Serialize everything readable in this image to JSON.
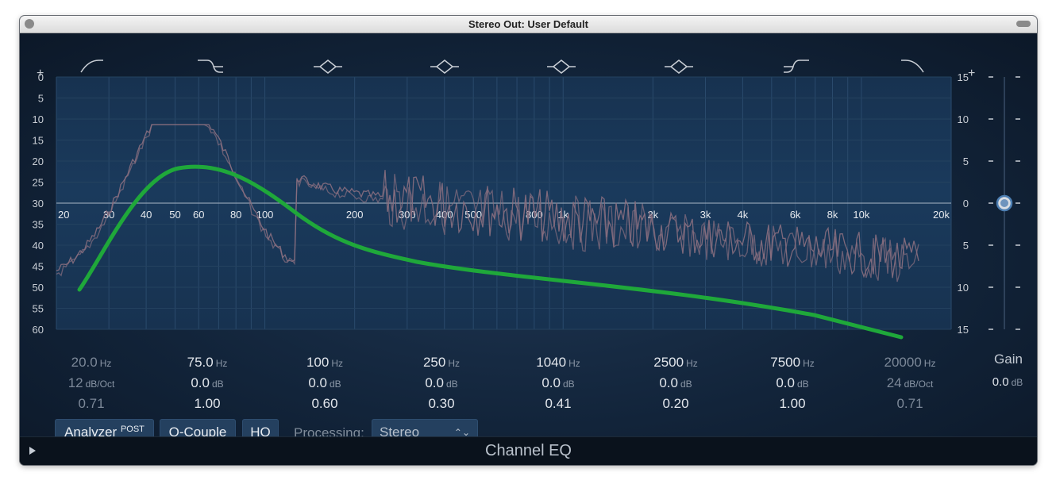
{
  "window": {
    "title": "Stereo Out: User Default"
  },
  "left_axis": {
    "plus": "+",
    "minus": "-",
    "ticks": [
      "0",
      "5",
      "10",
      "15",
      "20",
      "25",
      "30",
      "35",
      "40",
      "45",
      "50",
      "55",
      "60"
    ]
  },
  "right_axis": {
    "plus": "+",
    "ticks": [
      "15",
      "10",
      "5",
      "0",
      "5",
      "10",
      "15"
    ]
  },
  "freq_labels": [
    "20",
    "30",
    "40",
    "50",
    "60",
    "80",
    "100",
    "200",
    "300",
    "400",
    "500",
    "800",
    "1k",
    "2k",
    "3k",
    "4k",
    "6k",
    "8k",
    "10k",
    "20k"
  ],
  "band_icons": [
    "low-cut-icon",
    "low-shelf-icon",
    "bell-icon",
    "bell-icon",
    "bell-icon",
    "bell-icon",
    "high-shelf-icon",
    "high-cut-icon"
  ],
  "bands": [
    {
      "freq": "20.0",
      "freq_unit": "Hz",
      "gain": "12",
      "gain_unit": "dB/Oct",
      "q": "0.71",
      "active": false
    },
    {
      "freq": "75.0",
      "freq_unit": "Hz",
      "gain": "0.0",
      "gain_unit": "dB",
      "q": "1.00",
      "active": true
    },
    {
      "freq": "100",
      "freq_unit": "Hz",
      "gain": "0.0",
      "gain_unit": "dB",
      "q": "0.60",
      "active": true
    },
    {
      "freq": "250",
      "freq_unit": "Hz",
      "gain": "0.0",
      "gain_unit": "dB",
      "q": "0.30",
      "active": true
    },
    {
      "freq": "1040",
      "freq_unit": "Hz",
      "gain": "0.0",
      "gain_unit": "dB",
      "q": "0.41",
      "active": true
    },
    {
      "freq": "2500",
      "freq_unit": "Hz",
      "gain": "0.0",
      "gain_unit": "dB",
      "q": "0.20",
      "active": true
    },
    {
      "freq": "7500",
      "freq_unit": "Hz",
      "gain": "0.0",
      "gain_unit": "dB",
      "q": "1.00",
      "active": true
    },
    {
      "freq": "20000",
      "freq_unit": "Hz",
      "gain": "24",
      "gain_unit": "dB/Oct",
      "q": "0.71",
      "active": false
    }
  ],
  "gain": {
    "label": "Gain",
    "value": "0.0",
    "unit": "dB"
  },
  "buttons": {
    "analyzer": "Analyzer",
    "analyzer_badge": "POST",
    "q_couple": "Q-Couple",
    "hq": "HQ"
  },
  "processing": {
    "label": "Processing:",
    "value": "Stereo"
  },
  "footer": {
    "title": "Channel EQ"
  },
  "colors": {
    "curve": "#1fa83a",
    "analyzer": "#8a6f80",
    "background": "#173250"
  }
}
